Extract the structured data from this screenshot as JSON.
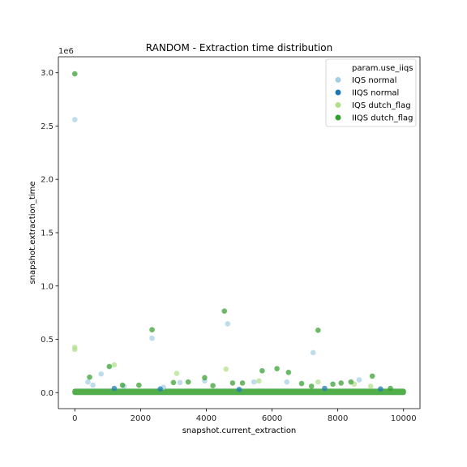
{
  "chart_data": {
    "type": "scatter",
    "title": "RANDOM - Extraction time distribution",
    "xlabel": "snapshot.current_extraction",
    "ylabel": "snapshot.extraction_time",
    "y_offset_label": "1e6",
    "xlim": [
      -500,
      10500
    ],
    "ylim": [
      -150000,
      3150000
    ],
    "x_ticks": [
      0,
      2000,
      4000,
      6000,
      8000,
      10000
    ],
    "x_tick_labels": [
      "0",
      "2000",
      "4000",
      "6000",
      "8000",
      "10000"
    ],
    "y_ticks": [
      0,
      500000,
      1000000,
      1500000,
      2000000,
      2500000,
      3000000
    ],
    "y_tick_labels": [
      "0.0",
      "0.5",
      "1.0",
      "1.5",
      "2.0",
      "2.5",
      "3.0"
    ],
    "grid": false,
    "legend_title": "param.use_iiqs",
    "legend_position": "top-right",
    "baseline_band": {
      "x_range": [
        0,
        10000
      ],
      "y_range": [
        0,
        22000
      ]
    },
    "series": [
      {
        "name": "IQS normal",
        "color": "#a6cee3",
        "points": [
          [
            0,
            2560000
          ],
          [
            400,
            100000
          ],
          [
            550,
            70000
          ],
          [
            800,
            175000
          ],
          [
            1500,
            60000
          ],
          [
            2350,
            510000
          ],
          [
            2700,
            50000
          ],
          [
            3200,
            95000
          ],
          [
            3950,
            110000
          ],
          [
            4650,
            645000
          ],
          [
            5450,
            100000
          ],
          [
            6450,
            100000
          ],
          [
            7250,
            375000
          ],
          [
            8650,
            120000
          ]
        ]
      },
      {
        "name": "IIQS normal",
        "color": "#1f78b4",
        "points": [
          [
            1200,
            40000
          ],
          [
            2600,
            35000
          ],
          [
            5000,
            30000
          ],
          [
            7600,
            40000
          ],
          [
            9300,
            35000
          ]
        ]
      },
      {
        "name": "IQS dutch_flag",
        "color": "#b2df8a",
        "points": [
          [
            0,
            425000
          ],
          [
            0,
            405000
          ],
          [
            1200,
            260000
          ],
          [
            3100,
            180000
          ],
          [
            4600,
            220000
          ],
          [
            5600,
            110000
          ],
          [
            7400,
            100000
          ],
          [
            8500,
            80000
          ],
          [
            9000,
            60000
          ]
        ]
      },
      {
        "name": "IIQS dutch_flag",
        "color": "#33a02c",
        "points": [
          [
            0,
            2990000
          ],
          [
            450,
            145000
          ],
          [
            1050,
            245000
          ],
          [
            1450,
            70000
          ],
          [
            1950,
            70000
          ],
          [
            2350,
            590000
          ],
          [
            3000,
            95000
          ],
          [
            3450,
            100000
          ],
          [
            3950,
            140000
          ],
          [
            4200,
            65000
          ],
          [
            4550,
            765000
          ],
          [
            4800,
            90000
          ],
          [
            5100,
            90000
          ],
          [
            5700,
            205000
          ],
          [
            6150,
            225000
          ],
          [
            6500,
            190000
          ],
          [
            6900,
            85000
          ],
          [
            7200,
            60000
          ],
          [
            7400,
            585000
          ],
          [
            7850,
            80000
          ],
          [
            8100,
            90000
          ],
          [
            8400,
            100000
          ],
          [
            9050,
            155000
          ],
          [
            9600,
            40000
          ]
        ]
      }
    ]
  }
}
